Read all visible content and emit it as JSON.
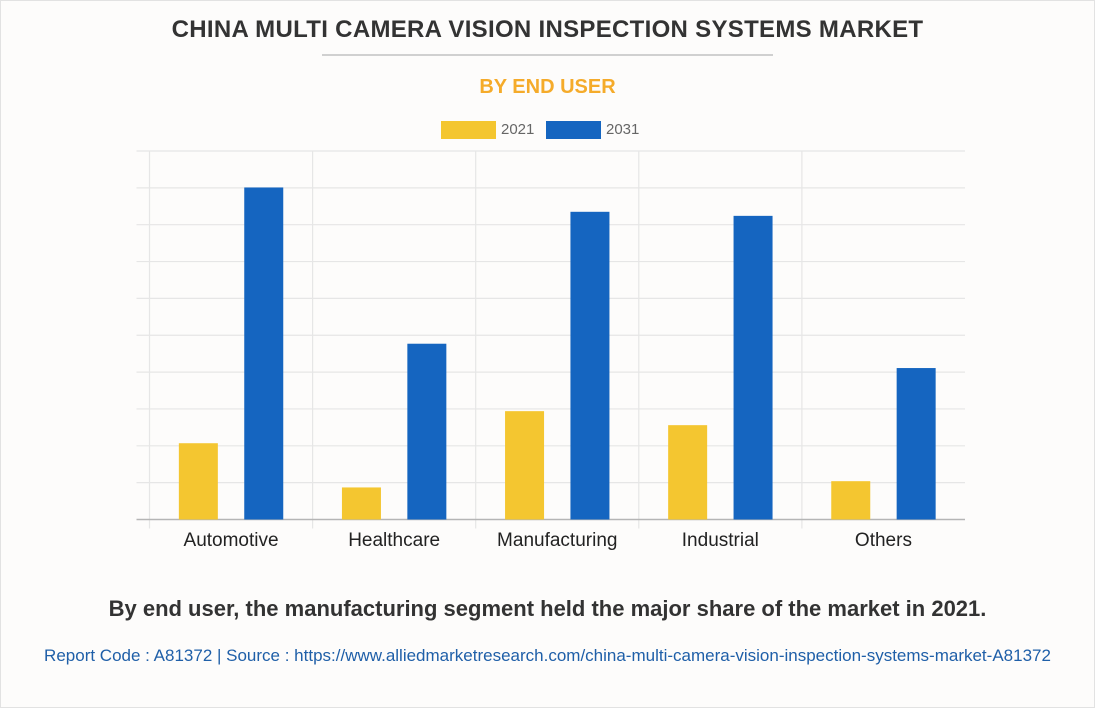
{
  "header": {
    "title": "CHINA MULTI CAMERA VISION INSPECTION SYSTEMS MARKET",
    "subtitle": "BY END USER"
  },
  "colors": {
    "series_2021": "#f4c630",
    "series_2031": "#1565c0",
    "subtitle": "#f5ab2a",
    "title": "#333333",
    "source_link": "#1f5fa8"
  },
  "chart_data": {
    "type": "bar",
    "title": "CHINA MULTI CAMERA VISION INSPECTION SYSTEMS MARKET",
    "subtitle": "BY END USER",
    "xlabel": "",
    "ylabel": "",
    "categories": [
      "Automotive",
      "Healthcare",
      "Manufacturing",
      "Industrial",
      "Others"
    ],
    "series": [
      {
        "name": "2021",
        "values": [
          2.07,
          0.87,
          2.94,
          2.56,
          1.04
        ]
      },
      {
        "name": "2031",
        "values": [
          9.01,
          4.77,
          8.35,
          8.24,
          4.11
        ]
      }
    ],
    "ylim": [
      0,
      10
    ],
    "y_gridlines": 10,
    "y_tick_labels_visible": false,
    "grid": true,
    "legend_position": "top-center",
    "value_units": "relative (unlabeled axis)"
  },
  "footer": {
    "caption": "By end user, the manufacturing segment held the major share of the market in 2021.",
    "source": "Report Code : A81372  |  Source : https://www.alliedmarketresearch.com/china-multi-camera-vision-inspection-systems-market-A81372"
  }
}
